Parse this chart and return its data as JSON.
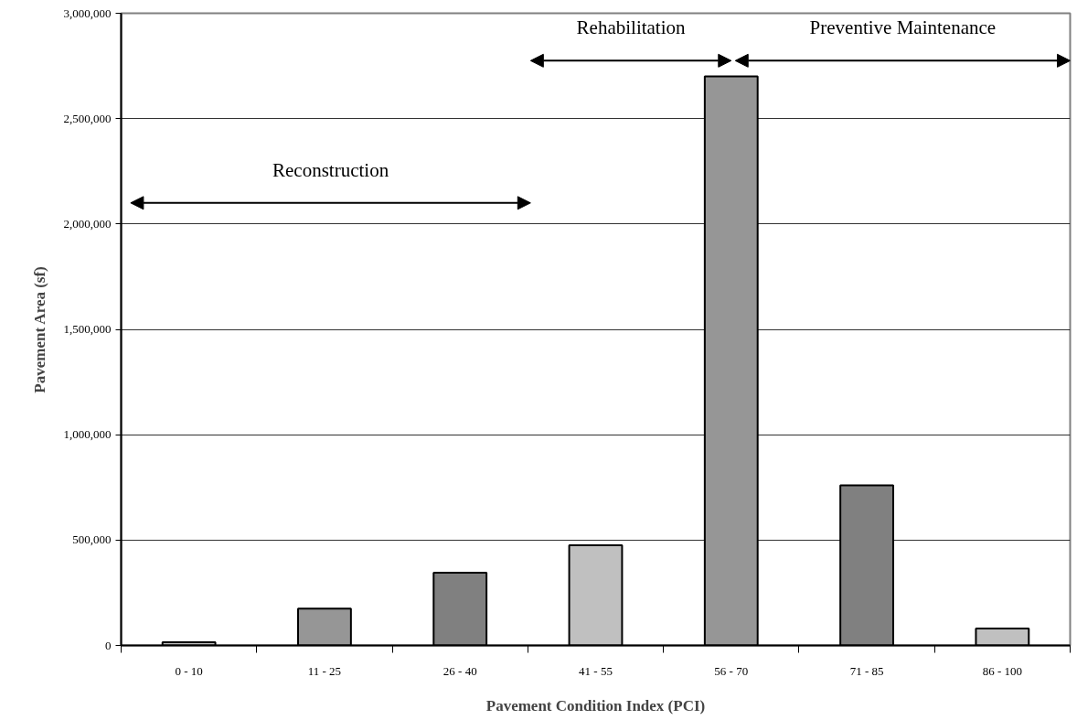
{
  "chart_data": {
    "type": "bar",
    "xlabel": "Pavement Condition Index (PCI)",
    "ylabel": "Pavement Area (sf)",
    "categories": [
      "0 - 10",
      "11 - 25",
      "26 - 40",
      "41 - 55",
      "56 - 70",
      "71 - 85",
      "86 - 100"
    ],
    "values": [
      15000,
      175000,
      345000,
      475000,
      2700000,
      760000,
      80000
    ],
    "colors": [
      "#c0c0c0",
      "#969696",
      "#808080",
      "#c0c0c0",
      "#969696",
      "#808080",
      "#c0c0c0"
    ],
    "ylim": [
      0,
      3000000
    ],
    "yticks": [
      0,
      {
        "value": 500000,
        "label": "500,000"
      },
      {
        "value": 1000000,
        "label": "1,000,000"
      },
      {
        "value": 1500000,
        "label": "1,500,000"
      },
      {
        "value": 2000000,
        "label": "2,000,000"
      },
      {
        "value": 2500000,
        "label": "2,500,000"
      },
      {
        "value": 3000000,
        "label": "3,000,000"
      }
    ],
    "grid": "y",
    "annotations": [
      "Reconstruction",
      "Rehabilitation",
      "Preventive Maintenance"
    ]
  }
}
